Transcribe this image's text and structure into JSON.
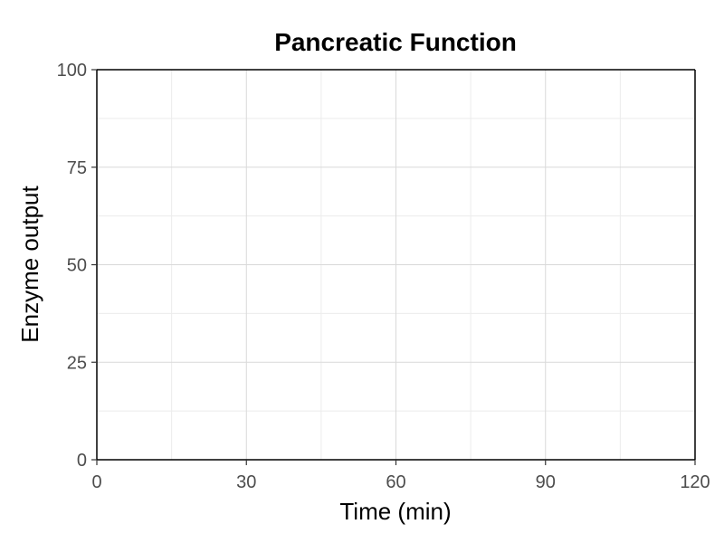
{
  "chart_data": {
    "type": "line",
    "title": "Pancreatic Function",
    "xlabel": "Time (min)",
    "ylabel": "Enzyme output",
    "xlim": [
      0,
      120
    ],
    "ylim": [
      0,
      100
    ],
    "x_ticks": [
      0,
      30,
      60,
      90,
      120
    ],
    "y_ticks": [
      0,
      25,
      50,
      75,
      100
    ],
    "x_tick_labels": [
      "0",
      "30",
      "60",
      "90",
      "120"
    ],
    "y_tick_labels": [
      "0",
      "25",
      "50",
      "75",
      "100"
    ],
    "x_minor_ticks": [
      15,
      45,
      75,
      105
    ],
    "y_minor_ticks": [
      12.5,
      37.5,
      62.5,
      87.5
    ],
    "grid": true,
    "series": []
  }
}
